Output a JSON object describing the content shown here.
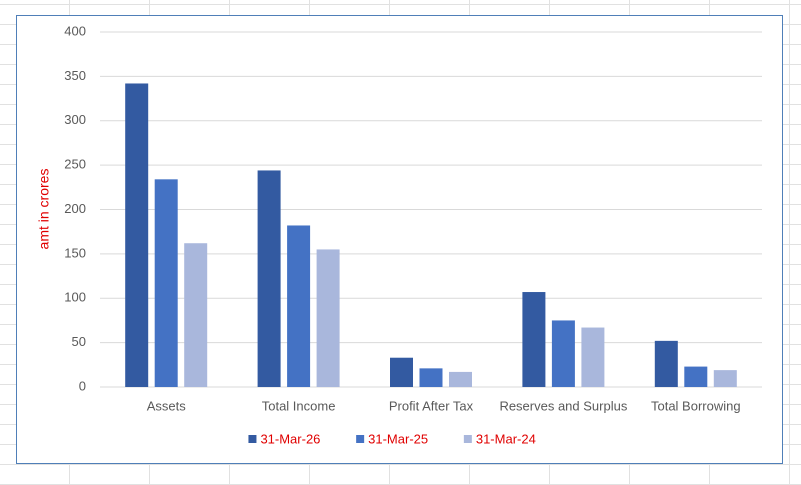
{
  "chart_data": {
    "type": "bar",
    "y_label": "amt in crores",
    "categories": [
      "Assets",
      "Total Income",
      "Profit After Tax",
      "Reserves and Surplus",
      "Total Borrowing"
    ],
    "series": [
      {
        "name": "31-Mar-26",
        "color": "#335aa1",
        "values": [
          342,
          244,
          33,
          107,
          52
        ]
      },
      {
        "name": "31-Mar-25",
        "color": "#4472c4",
        "values": [
          234,
          182,
          21,
          75,
          23
        ]
      },
      {
        "name": "31-Mar-24",
        "color": "#a9b7dc",
        "values": [
          162,
          155,
          17,
          67,
          19
        ]
      }
    ],
    "ylim": [
      0,
      400
    ],
    "yticks": [
      0,
      50,
      100,
      150,
      200,
      250,
      300,
      350,
      400
    ],
    "grid": true,
    "legend": "bottom"
  }
}
